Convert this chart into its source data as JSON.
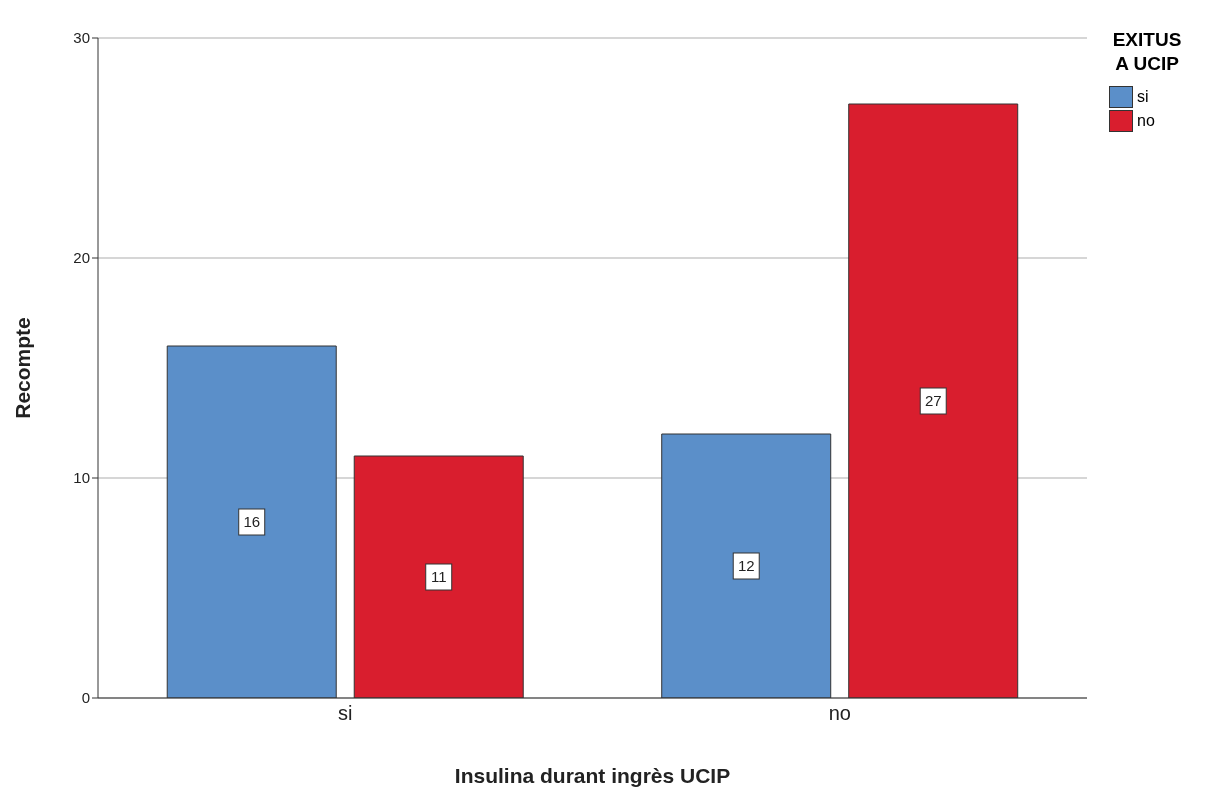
{
  "chart_data": {
    "type": "bar",
    "xlabel": "Insulina durant ingrès UCIP",
    "ylabel": "Recompte",
    "legend_title": "EXITUS A UCIP",
    "categories": [
      "si",
      "no"
    ],
    "series": [
      {
        "name": "si",
        "color": "#5b8fc9",
        "values": [
          16,
          12
        ]
      },
      {
        "name": "no",
        "color": "#d91e2e",
        "values": [
          11,
          27
        ]
      }
    ],
    "ylim": [
      0,
      30
    ],
    "yticks": [
      0,
      10,
      20,
      30
    ],
    "grid": "y",
    "legend": "top right",
    "data_labels": true
  }
}
